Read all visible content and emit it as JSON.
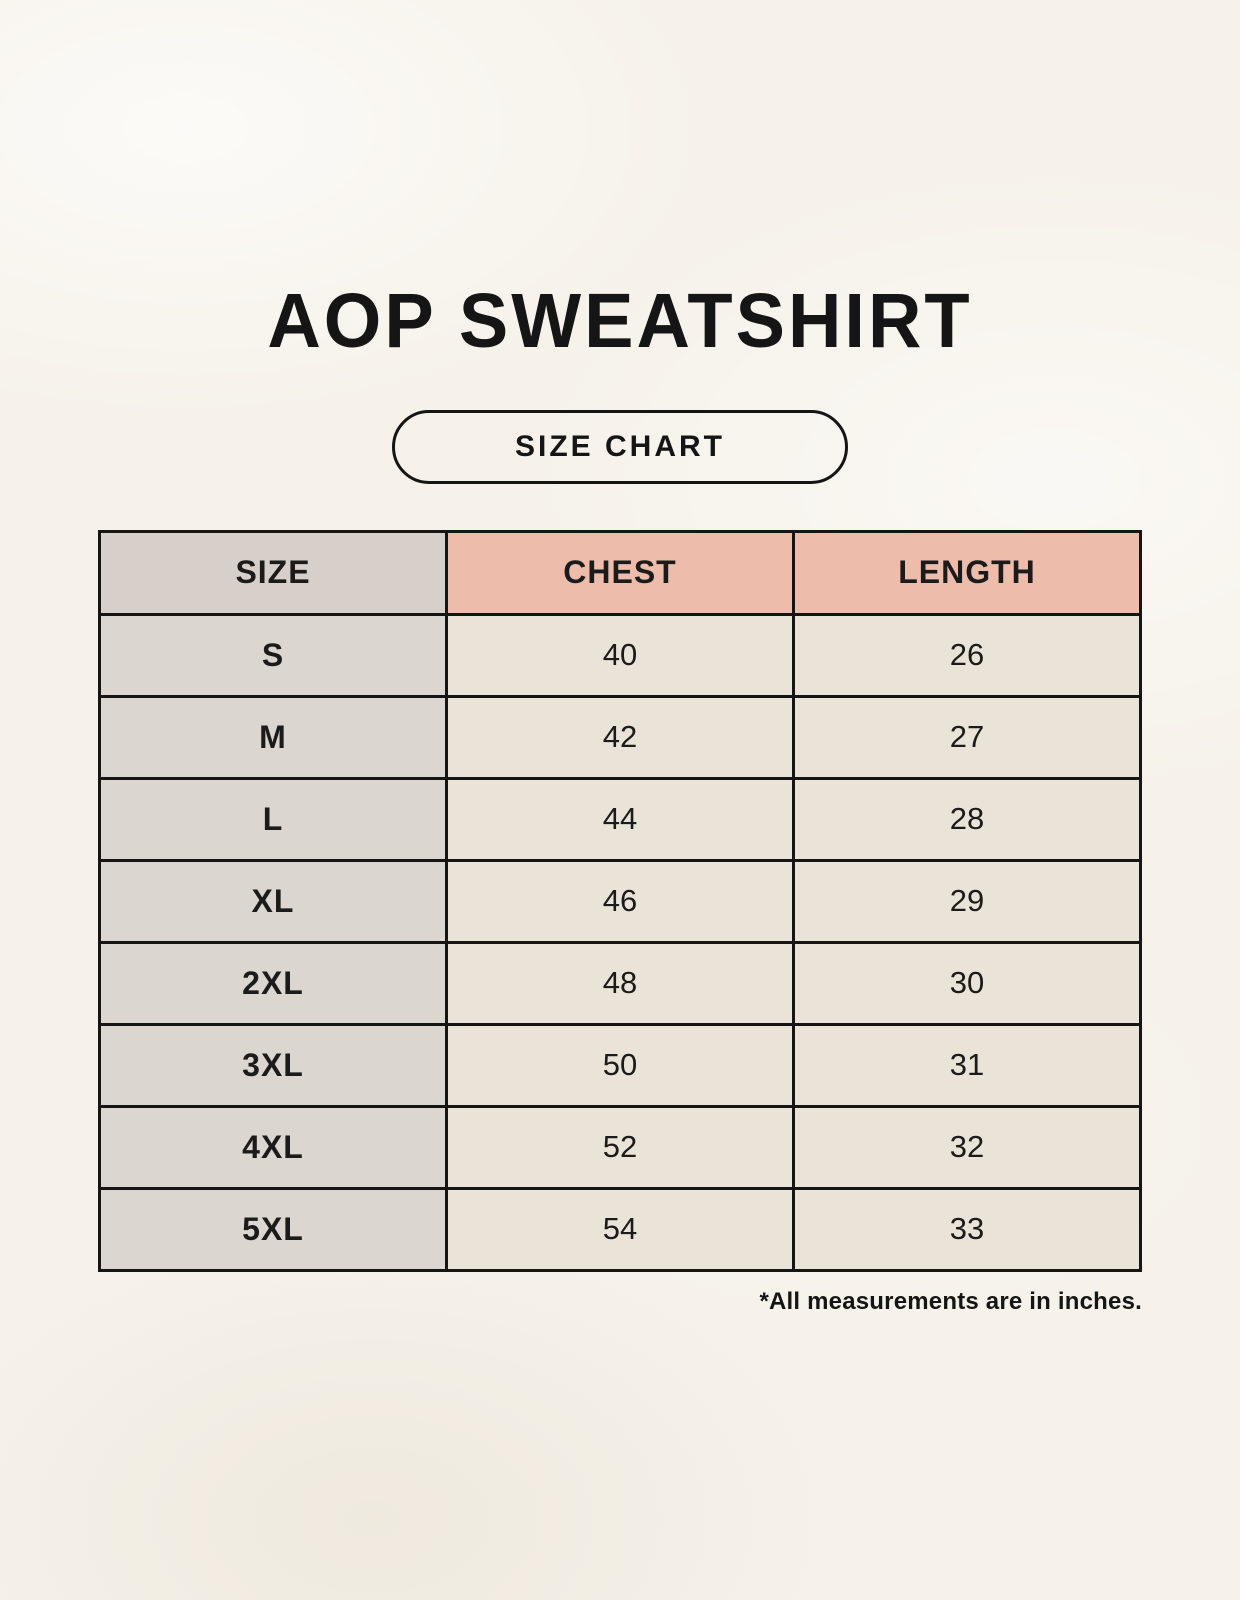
{
  "page": {
    "title": "AOP SWEATSHIRT",
    "badge_label": "SIZE CHART",
    "footnote": "*All measurements are in inches."
  },
  "colors": {
    "page_background": "#f6f2ea",
    "size_column_header": "#d7d0ca",
    "size_column_cells": "#dcd6d0",
    "measure_header_accent": "#eebcab",
    "value_cells": "#eae3d7",
    "border_and_text": "#151515"
  },
  "chart_data": {
    "type": "table",
    "title": "AOP SWEATSHIRT SIZE CHART",
    "columns": [
      "SIZE",
      "CHEST",
      "LENGTH"
    ],
    "units": "inches",
    "rows": [
      [
        "S",
        40,
        26
      ],
      [
        "M",
        42,
        27
      ],
      [
        "L",
        44,
        28
      ],
      [
        "XL",
        46,
        29
      ],
      [
        "2XL",
        48,
        30
      ],
      [
        "3XL",
        50,
        31
      ],
      [
        "4XL",
        52,
        32
      ],
      [
        "5XL",
        54,
        33
      ]
    ]
  },
  "table": {
    "headers": [
      {
        "label": "SIZE"
      },
      {
        "label": "CHEST"
      },
      {
        "label": "LENGTH"
      }
    ],
    "rows": [
      {
        "size": "S",
        "chest": "40",
        "length": "26"
      },
      {
        "size": "M",
        "chest": "42",
        "length": "27"
      },
      {
        "size": "L",
        "chest": "44",
        "length": "28"
      },
      {
        "size": "XL",
        "chest": "46",
        "length": "29"
      },
      {
        "size": "2XL",
        "chest": "48",
        "length": "30"
      },
      {
        "size": "3XL",
        "chest": "50",
        "length": "31"
      },
      {
        "size": "4XL",
        "chest": "52",
        "length": "32"
      },
      {
        "size": "5XL",
        "chest": "54",
        "length": "33"
      }
    ]
  }
}
